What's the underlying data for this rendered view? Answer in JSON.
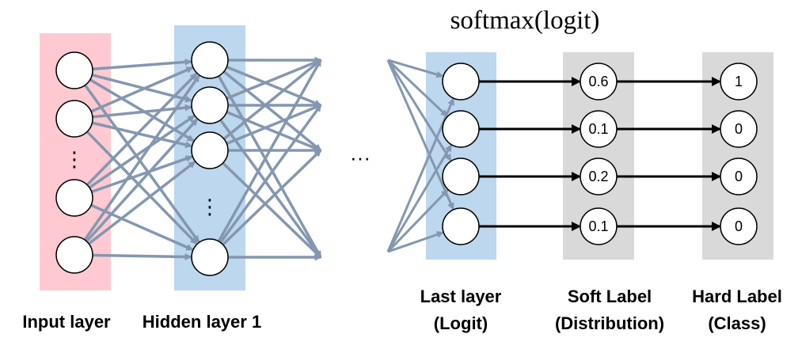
{
  "title": "softmax(logit)",
  "ellipsis": "···",
  "vertical_dots": "⋮",
  "captions": {
    "input": "Input layer",
    "hidden": "Hidden layer 1",
    "last_line1": "Last layer",
    "last_line2": "(Logit)",
    "soft_line1": "Soft Label",
    "soft_line2": "(Distribution)",
    "hard_line1": "Hard Label",
    "hard_line2": "(Class)"
  },
  "soft_labels": [
    "0.6",
    "0.1",
    "0.2",
    "0.1"
  ],
  "hard_labels": [
    "1",
    "0",
    "0",
    "0"
  ],
  "colors": {
    "input_band": "#ffc9d1",
    "hidden_band": "#bcd7ee",
    "logit_band": "#bcd7ee",
    "label_band": "#d9d9d9",
    "connection": "#8497b0",
    "output_arrow": "#000000"
  }
}
